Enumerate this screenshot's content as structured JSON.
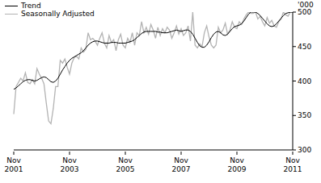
{
  "chart_data": {
    "type": "line",
    "y_label": "'000",
    "grid": false,
    "legend": "top left",
    "ylim": [
      300,
      500
    ],
    "yticks": [
      300,
      350,
      400,
      450,
      500
    ],
    "categories": [
      "Nov 2001",
      null,
      null,
      null,
      null,
      null,
      null,
      null,
      null,
      null,
      null,
      null,
      null,
      null,
      null,
      null,
      null,
      null,
      null,
      null,
      null,
      null,
      null,
      null,
      "Nov 2003",
      null,
      null,
      null,
      null,
      null,
      null,
      null,
      null,
      null,
      null,
      null,
      null,
      null,
      null,
      null,
      null,
      null,
      null,
      null,
      null,
      null,
      null,
      null,
      "Nov 2005",
      null,
      null,
      null,
      null,
      null,
      null,
      null,
      null,
      null,
      null,
      null,
      null,
      null,
      null,
      null,
      null,
      null,
      null,
      null,
      null,
      null,
      null,
      null,
      "Nov 2007",
      null,
      null,
      null,
      null,
      null,
      null,
      null,
      null,
      null,
      null,
      null,
      null,
      null,
      null,
      null,
      null,
      null,
      null,
      null,
      null,
      null,
      null,
      null,
      "Nov 2009",
      null,
      null,
      null,
      null,
      null,
      null,
      null,
      null,
      null,
      null,
      null,
      null,
      null,
      null,
      null,
      null,
      null,
      null,
      null,
      null,
      null,
      null,
      null,
      "Nov 2011"
    ],
    "series": [
      {
        "name": "Trend",
        "color": "#000000",
        "values": [
          388,
          390,
          393,
          396,
          399,
          401,
          402,
          402,
          401,
          400,
          401,
          403,
          405,
          406,
          405,
          402,
          399,
          398,
          400,
          404,
          410,
          416,
          421,
          426,
          430,
          433,
          435,
          437,
          439,
          441,
          444,
          448,
          452,
          455,
          457,
          458,
          458,
          457,
          456,
          455,
          455,
          455,
          456,
          456,
          456,
          455,
          455,
          455,
          455,
          456,
          457,
          458,
          460,
          463,
          466,
          469,
          471,
          472,
          472,
          472,
          472,
          472,
          471,
          471,
          470,
          470,
          470,
          471,
          472,
          473,
          474,
          473,
          472,
          473,
          474,
          474,
          472,
          468,
          462,
          456,
          451,
          449,
          449,
          452,
          457,
          463,
          468,
          471,
          472,
          470,
          467,
          466,
          468,
          472,
          476,
          479,
          480,
          481,
          483,
          487,
          492,
          497,
          500,
          500,
          500,
          498,
          495,
          491,
          487,
          483,
          480,
          479,
          480,
          483,
          487,
          491,
          495,
          498,
          499,
          500,
          500
        ]
      },
      {
        "name": "Seasonally Adjusted",
        "color": "#b3b3b3",
        "values": [
          352,
          392,
          398,
          404,
          400,
          412,
          398,
          396,
          402,
          396,
          418,
          410,
          404,
          396,
          368,
          342,
          338,
          360,
          392,
          392,
          430,
          426,
          432,
          420,
          410,
          426,
          434,
          436,
          432,
          448,
          442,
          446,
          470,
          460,
          462,
          458,
          452,
          462,
          470,
          455,
          448,
          466,
          456,
          460,
          444,
          460,
          468,
          452,
          448,
          462,
          456,
          470,
          452,
          470,
          466,
          486,
          470,
          478,
          468,
          482,
          474,
          462,
          478,
          466,
          476,
          470,
          478,
          474,
          462,
          470,
          480,
          468,
          476,
          466,
          470,
          480,
          458,
          500,
          452,
          448,
          454,
          450,
          470,
          480,
          464,
          452,
          448,
          452,
          478,
          470,
          474,
          484,
          468,
          474,
          486,
          478,
          476,
          486,
          482,
          490,
          496,
          500,
          498,
          498,
          500,
          490,
          494,
          486,
          480,
          492,
          484,
          488,
          480,
          478,
          486,
          490,
          500,
          496,
          494,
          500,
          500
        ]
      }
    ]
  }
}
